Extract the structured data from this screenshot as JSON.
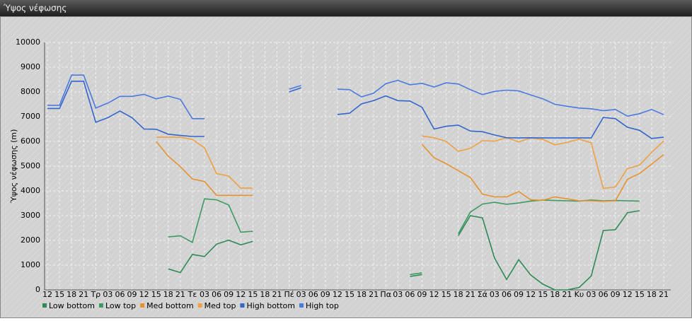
{
  "chart_data": {
    "type": "line",
    "title": "Ύψος νέφωσης",
    "ylabel": "Ύψος νέφωσης (m)",
    "categories": [
      "12",
      "15",
      "18",
      "21",
      "Τρ",
      "03",
      "06",
      "09",
      "12",
      "15",
      "18",
      "21",
      "Τε",
      "03",
      "06",
      "09",
      "12",
      "15",
      "18",
      "21",
      "Πέ",
      "03",
      "06",
      "09",
      "12",
      "15",
      "18",
      "21",
      "Πα",
      "03",
      "06",
      "09",
      "12",
      "15",
      "18",
      "21",
      "Σά",
      "03",
      "06",
      "09",
      "12",
      "15",
      "18",
      "21",
      "Κυ",
      "03",
      "06",
      "09",
      "12",
      "15",
      "18",
      "21"
    ],
    "series": [
      {
        "name": "Low bottom",
        "color": "#2e8b57",
        "values": [
          null,
          null,
          null,
          null,
          null,
          null,
          null,
          null,
          null,
          null,
          850,
          700,
          1430,
          1350,
          1850,
          2010,
          1820,
          1960,
          null,
          null,
          null,
          null,
          null,
          null,
          null,
          null,
          null,
          null,
          null,
          null,
          540,
          620,
          null,
          null,
          2190,
          3000,
          2910,
          1290,
          420,
          1220,
          600,
          230,
          0,
          0,
          100,
          560,
          2400,
          2430,
          3120,
          3200,
          null,
          null
        ]
      },
      {
        "name": "Low top",
        "color": "#3d9a62",
        "values": [
          null,
          null,
          null,
          null,
          null,
          null,
          null,
          null,
          null,
          null,
          2140,
          2190,
          1920,
          3680,
          3640,
          3430,
          2330,
          2370,
          null,
          null,
          null,
          null,
          null,
          null,
          null,
          null,
          null,
          null,
          null,
          null,
          620,
          690,
          null,
          null,
          2270,
          3140,
          3470,
          3540,
          3460,
          3510,
          3590,
          3630,
          3610,
          3600,
          3590,
          3630,
          3600,
          3610,
          3600,
          3590,
          null,
          null
        ]
      },
      {
        "name": "Med bottom",
        "color": "#e8922e",
        "values": [
          null,
          null,
          null,
          null,
          null,
          null,
          null,
          null,
          null,
          6000,
          5400,
          4980,
          4480,
          4380,
          3820,
          3820,
          3820,
          3820,
          null,
          null,
          null,
          null,
          null,
          null,
          null,
          null,
          null,
          null,
          null,
          null,
          null,
          5880,
          5340,
          5100,
          4820,
          4540,
          3870,
          3760,
          3760,
          3970,
          3640,
          3620,
          3760,
          3680,
          3600,
          3600,
          3580,
          3600,
          4470,
          4700,
          5080,
          5470
        ]
      },
      {
        "name": "Med top",
        "color": "#f0a040",
        "values": [
          null,
          null,
          null,
          null,
          null,
          null,
          null,
          null,
          null,
          6170,
          6170,
          6170,
          6080,
          5740,
          4700,
          4600,
          4110,
          4110,
          null,
          null,
          null,
          null,
          null,
          null,
          null,
          null,
          null,
          null,
          null,
          null,
          null,
          6220,
          6150,
          6000,
          5600,
          5720,
          6030,
          6010,
          6150,
          5980,
          6140,
          6080,
          5860,
          5960,
          6090,
          5950,
          4100,
          4160,
          4900,
          5040,
          5550,
          6020
        ]
      },
      {
        "name": "High bottom",
        "color": "#3366cc",
        "values": [
          7330,
          7330,
          8430,
          8430,
          6770,
          6960,
          7230,
          6960,
          6500,
          6490,
          6290,
          6240,
          6200,
          6200,
          null,
          null,
          null,
          null,
          null,
          null,
          8000,
          8170,
          null,
          null,
          7090,
          7140,
          7520,
          7650,
          7840,
          7650,
          7630,
          7380,
          6500,
          6610,
          6660,
          6420,
          6390,
          6260,
          6150,
          6140,
          6150,
          6140,
          6140,
          6140,
          6140,
          6140,
          6970,
          6920,
          6570,
          6450,
          6120,
          6170
        ]
      },
      {
        "name": "High top",
        "color": "#4a7ae0",
        "values": [
          7460,
          7460,
          8680,
          8680,
          7350,
          7550,
          7820,
          7820,
          7900,
          7720,
          7830,
          7700,
          6920,
          6920,
          null,
          null,
          null,
          null,
          null,
          null,
          8110,
          8260,
          null,
          null,
          8110,
          8090,
          7800,
          7950,
          8330,
          8470,
          8290,
          8350,
          8200,
          8370,
          8320,
          8090,
          7890,
          8020,
          8070,
          8040,
          7880,
          7720,
          7500,
          7420,
          7350,
          7320,
          7240,
          7290,
          7020,
          7120,
          7290,
          7080
        ]
      }
    ],
    "ylim": [
      0,
      10000
    ],
    "yticks": [
      0,
      1000,
      2000,
      3000,
      4000,
      5000,
      6000,
      7000,
      8000,
      9000,
      10000
    ],
    "grid": true
  }
}
